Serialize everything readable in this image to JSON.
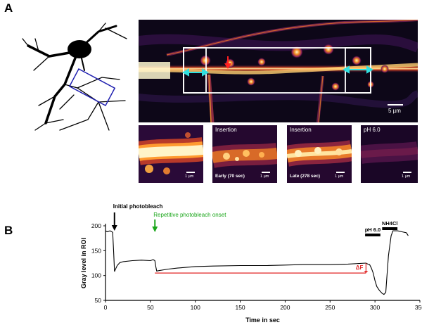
{
  "panel_a": {
    "label": "A",
    "main_scale": "5 µm",
    "tiles": [
      {
        "label": "",
        "scale": "1 µm"
      },
      {
        "label": "Insertion",
        "caption": "Early (70 sec)",
        "scale": "1 µm"
      },
      {
        "label": "Insertion",
        "caption": "Late (278 sec)",
        "scale": "1 µm"
      },
      {
        "label": "pH 6.0",
        "scale": "1 µm"
      }
    ]
  },
  "panel_b": {
    "label": "B"
  },
  "chart_data": {
    "type": "line",
    "title": "",
    "xlabel": "Time in sec",
    "ylabel": "Gray level in ROI",
    "xlim": [
      0,
      350
    ],
    "ylim": [
      50,
      200
    ],
    "xticks": [
      0,
      50,
      100,
      150,
      200,
      250,
      300,
      350
    ],
    "yticks": [
      50,
      100,
      150,
      200
    ],
    "series": [
      {
        "name": "Gray level",
        "x": [
          0,
          2,
          5,
          8,
          9,
          10,
          11,
          13,
          16,
          20,
          30,
          40,
          50,
          53,
          55,
          56,
          57,
          60,
          70,
          80,
          100,
          120,
          150,
          180,
          200,
          220,
          250,
          270,
          290,
          292,
          294,
          296,
          298,
          300,
          302,
          305,
          308,
          310,
          312,
          313,
          315,
          318,
          320,
          325,
          330,
          335,
          337
        ],
        "y": [
          190,
          188,
          190,
          187,
          150,
          108,
          112,
          120,
          126,
          128,
          130,
          131,
          130,
          132,
          130,
          118,
          109,
          110,
          113,
          115,
          118,
          119,
          120,
          120,
          121,
          122,
          122,
          123,
          125,
          123,
          122,
          115,
          105,
          90,
          78,
          70,
          64,
          62,
          66,
          90,
          140,
          180,
          190,
          190,
          188,
          186,
          180
        ]
      }
    ],
    "annotations": [
      {
        "text": "Initial photobleach",
        "x": 10,
        "color": "#000000"
      },
      {
        "text": "Repetitive photobleach onset",
        "x": 55,
        "color": "#1aa61a"
      },
      {
        "text": "ΔF",
        "x": 290,
        "color": "#e02020"
      },
      {
        "text": "pH 6.0",
        "x_range": [
          289,
          306
        ],
        "color": "#000000"
      },
      {
        "text": "NH4Cl",
        "x_range": [
          308,
          325
        ],
        "color": "#000000"
      }
    ],
    "baseline": {
      "value": 105,
      "x_range": [
        55,
        290
      ],
      "color": "#e02020"
    }
  }
}
